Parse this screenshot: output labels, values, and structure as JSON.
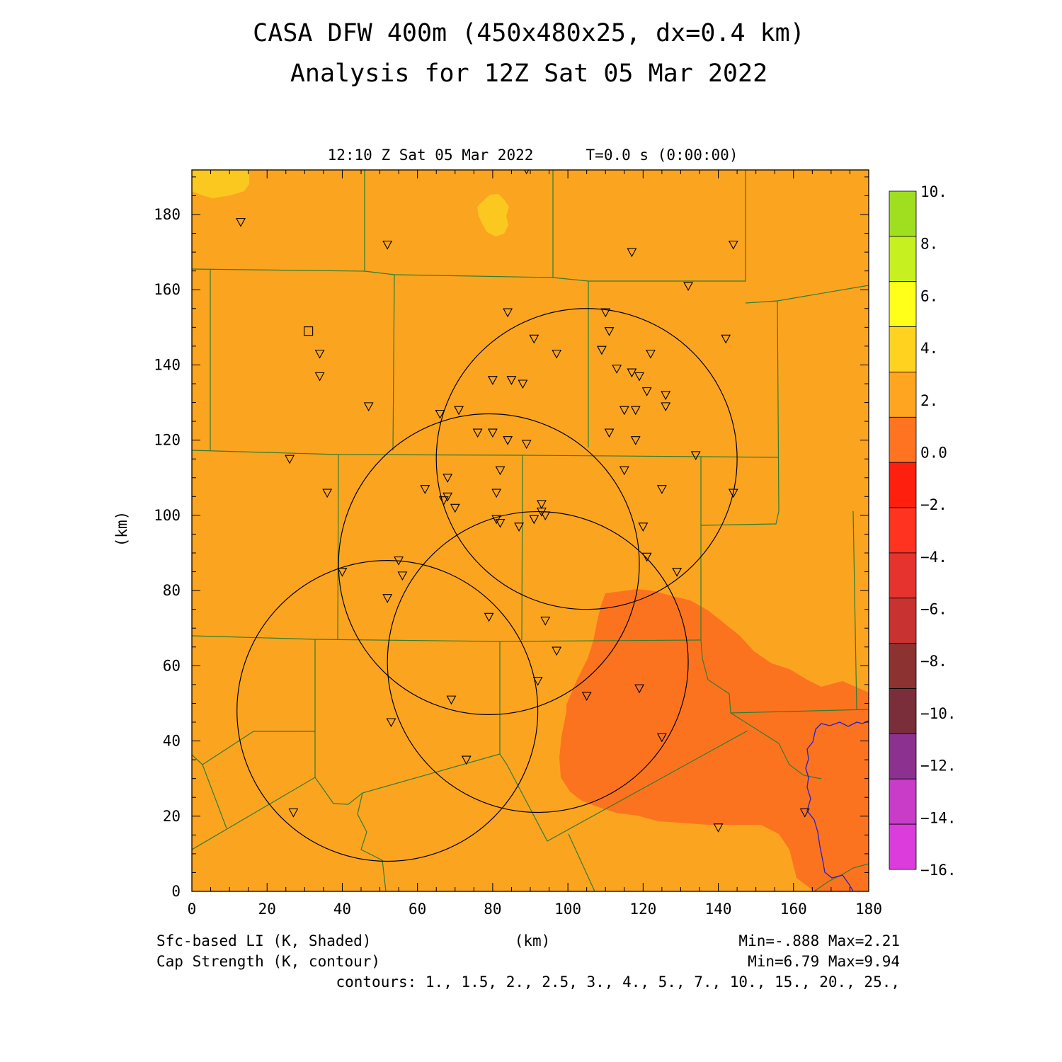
{
  "title_line1": "CASA DFW 400m (450x480x25, dx=0.4 km)",
  "title_line2": "Analysis for 12Z Sat 05 Mar 2022",
  "valid_time": "12:10 Z Sat 05 Mar 2022",
  "forecast_time": "T=0.0 s (0:00:00)",
  "axis": {
    "x_label": "(km)",
    "y_label": "(km)",
    "x_ticks": [
      "0",
      "20",
      "40",
      "60",
      "80",
      "100",
      "120",
      "140",
      "160",
      "180"
    ],
    "y_ticks": [
      "0",
      "20",
      "40",
      "60",
      "80",
      "100",
      "120",
      "140",
      "160",
      "180"
    ],
    "x_range": [
      0,
      180
    ],
    "y_range": [
      0,
      192
    ]
  },
  "colorbar": {
    "labels": [
      "10.",
      "8.",
      "6.",
      "4.",
      "2.",
      "0.0",
      "−2.",
      "−4.",
      "−6.",
      "−8.",
      "−10.",
      "−12.",
      "−14.",
      "−16."
    ],
    "colors": [
      "#9fdf1f",
      "#c6f01f",
      "#ffff1a",
      "#ffd21f",
      "#ffa51f",
      "#ff7321",
      "#ff1f0f",
      "#ff331f",
      "#e6332e",
      "#c83230",
      "#8c3230",
      "#7a2e3a",
      "#8c3190",
      "#c83cc8",
      "#dc3cdc"
    ]
  },
  "field_colors": {
    "background": "#fba420",
    "negative_li": "#fc731f",
    "positive_li": "#fbc81f",
    "county_lines": "#2e7d32",
    "river": "#2020d0",
    "contour": "#000000"
  },
  "footer": {
    "left1": "Sfc-based LI (K, Shaded)",
    "left2": "Cap Strength (K, contour)",
    "center": "(km)",
    "right1": "Min=-.888 Max=2.21",
    "right2": "Min=6.79 Max=9.94",
    "contours": "contours: 1., 1.5, 2., 2.5, 3., 4., 5., 7., 10., 15., 20., 25.,"
  },
  "radar_rings": [
    {
      "cx": 105,
      "cy": 115,
      "r": 40
    },
    {
      "cx": 79,
      "cy": 87,
      "r": 40
    },
    {
      "cx": 92,
      "cy": 61,
      "r": 40
    },
    {
      "cx": 52,
      "cy": 48,
      "r": 40
    }
  ],
  "stations": [
    [
      13,
      178
    ],
    [
      52,
      172
    ],
    [
      89,
      192
    ],
    [
      117,
      170
    ],
    [
      144,
      172
    ],
    [
      132,
      161
    ],
    [
      84,
      154
    ],
    [
      110,
      154
    ],
    [
      111,
      149
    ],
    [
      91,
      147
    ],
    [
      97,
      143
    ],
    [
      109,
      144
    ],
    [
      122,
      143
    ],
    [
      142,
      147
    ],
    [
      34,
      143
    ],
    [
      34,
      137
    ],
    [
      80,
      136
    ],
    [
      85,
      136
    ],
    [
      88,
      135
    ],
    [
      113,
      139
    ],
    [
      117,
      138
    ],
    [
      119,
      137
    ],
    [
      121,
      133
    ],
    [
      126,
      132
    ],
    [
      126,
      129
    ],
    [
      47,
      129
    ],
    [
      66,
      127
    ],
    [
      71,
      128
    ],
    [
      115,
      128
    ],
    [
      118,
      128
    ],
    [
      76,
      122
    ],
    [
      80,
      122
    ],
    [
      84,
      120
    ],
    [
      89,
      119
    ],
    [
      111,
      122
    ],
    [
      118,
      120
    ],
    [
      26,
      115
    ],
    [
      134,
      116
    ],
    [
      82,
      112
    ],
    [
      115,
      112
    ],
    [
      125,
      107
    ],
    [
      144,
      106
    ],
    [
      36,
      106
    ],
    [
      62,
      107
    ],
    [
      67,
      104
    ],
    [
      68,
      105
    ],
    [
      68,
      110
    ],
    [
      70,
      102
    ],
    [
      81,
      106
    ],
    [
      93,
      103
    ],
    [
      93,
      101
    ],
    [
      94,
      100
    ],
    [
      81,
      99
    ],
    [
      82,
      98
    ],
    [
      87,
      97
    ],
    [
      91,
      99
    ],
    [
      120,
      97
    ],
    [
      121,
      89
    ],
    [
      129,
      85
    ],
    [
      40,
      85
    ],
    [
      55,
      88
    ],
    [
      56,
      84
    ],
    [
      52,
      78
    ],
    [
      79,
      73
    ],
    [
      94,
      72
    ],
    [
      97,
      64
    ],
    [
      92,
      56
    ],
    [
      105,
      52
    ],
    [
      119,
      54
    ],
    [
      69,
      51
    ],
    [
      53,
      45
    ],
    [
      125,
      41
    ],
    [
      73,
      35
    ],
    [
      27,
      21
    ],
    [
      140,
      17
    ],
    [
      163,
      21
    ]
  ],
  "squares": [
    [
      31,
      149
    ]
  ]
}
